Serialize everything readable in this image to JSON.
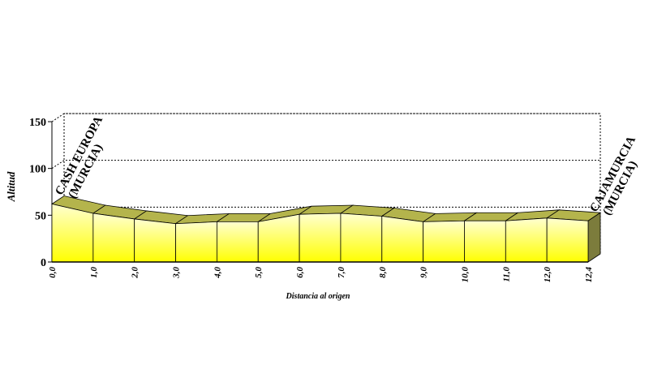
{
  "chart_data": {
    "type": "area3d",
    "categories": [
      "0,0",
      "1,0",
      "2,0",
      "3,0",
      "4,0",
      "5,0",
      "6,0",
      "7,0",
      "8,0",
      "9,0",
      "10,0",
      "11,0",
      "12,0",
      "12,4"
    ],
    "values": [
      62,
      52,
      46,
      41,
      43,
      43,
      51,
      52,
      49,
      43,
      44,
      44,
      47,
      44
    ],
    "ylim": [
      0,
      150
    ],
    "yticks": [
      0,
      50,
      100,
      150
    ],
    "grid": true,
    "y_label": "Altitud",
    "x_label": "Distancia al origen",
    "annotations": [
      [
        "CASH EUROPA",
        "(MURCIA)"
      ],
      [
        "CAJAMURCIA",
        "(MURCIA)"
      ]
    ],
    "colors": {
      "front": "#ffff00",
      "top": "#b4b44c",
      "side": "#7c7c3c"
    }
  }
}
